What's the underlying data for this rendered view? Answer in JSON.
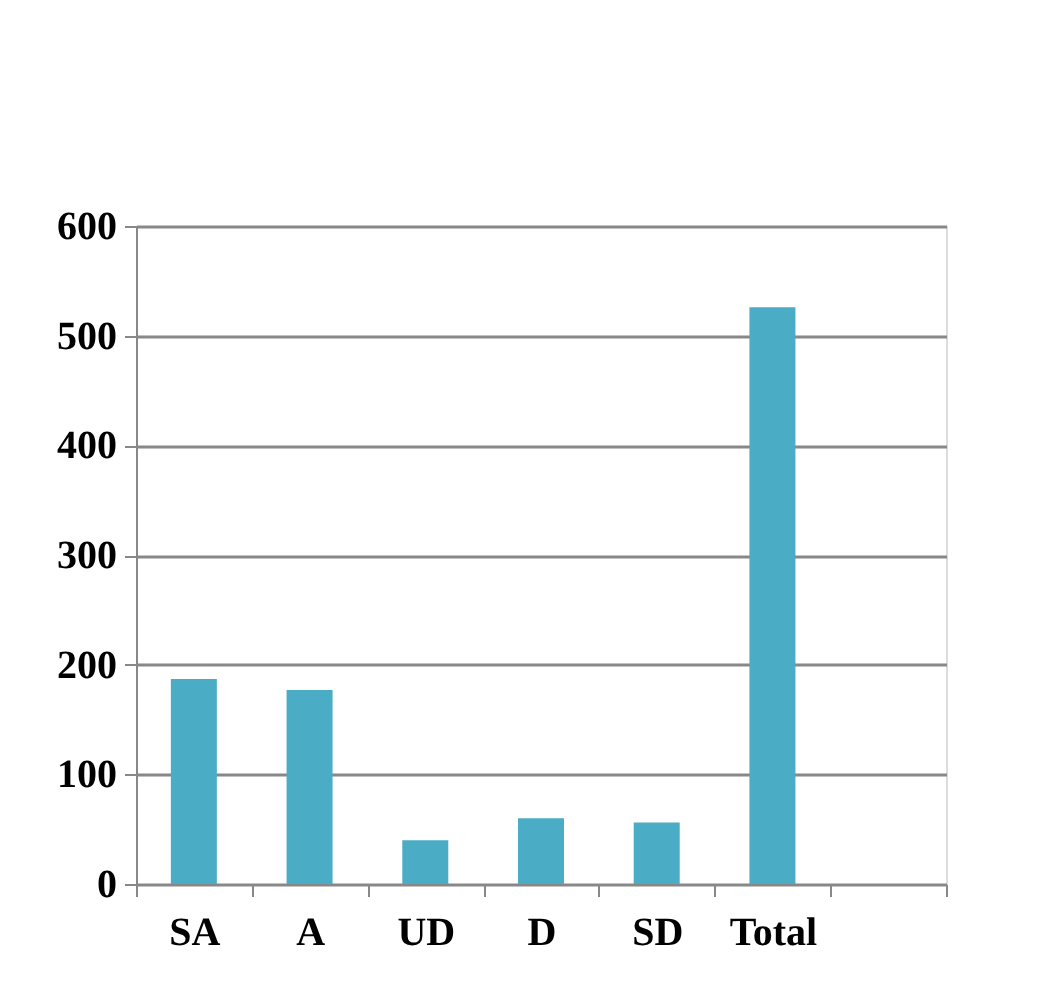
{
  "chart_data": {
    "type": "bar",
    "categories": [
      "SA",
      "A",
      "UD",
      "D",
      "SD",
      "Total",
      null
    ],
    "values": [
      187,
      177,
      40,
      60,
      56,
      526,
      null
    ],
    "color": "#4bacc6",
    "ylim": [
      0,
      600
    ],
    "yticks": [
      0,
      100,
      200,
      300,
      400,
      500,
      600
    ],
    "grid": "y"
  }
}
